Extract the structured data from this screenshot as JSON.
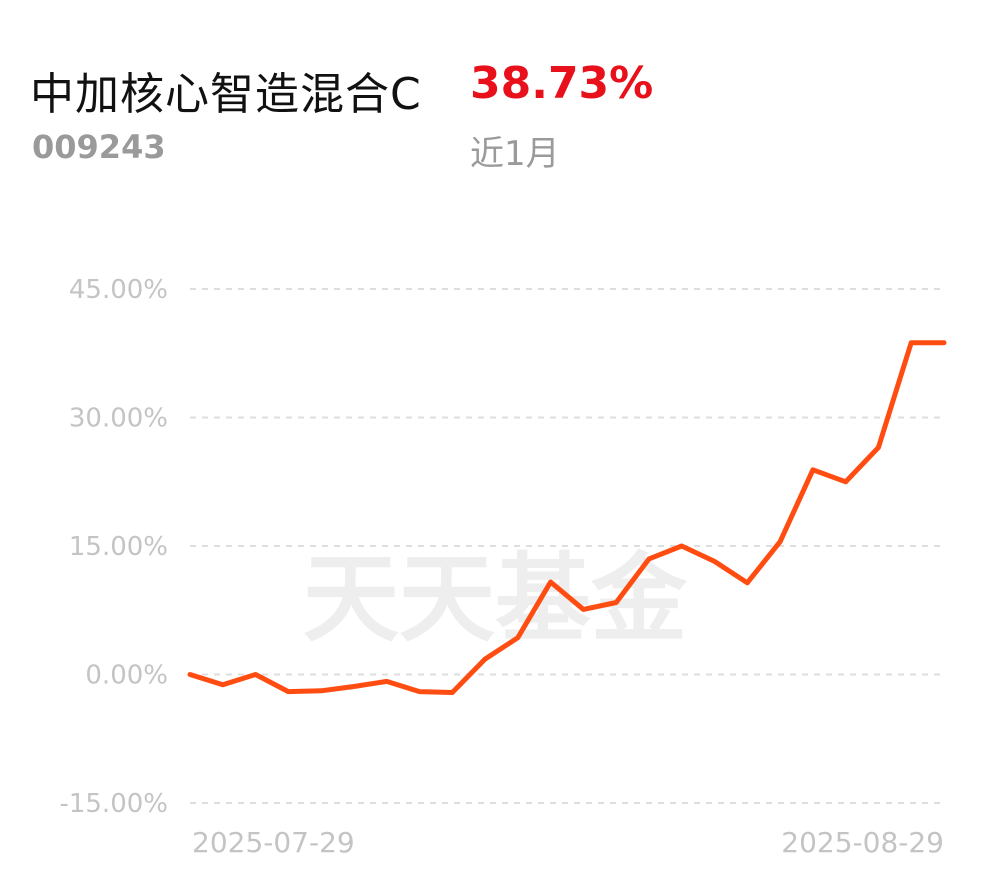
{
  "fund": {
    "name": "中加核心智造混合C",
    "code": "009243",
    "return_value": "38.73%",
    "period_label": "近1月"
  },
  "watermark": "天天基金",
  "colors": {
    "line": "#ff4d12",
    "return": "#e8101a",
    "grid": "#dedede",
    "axis_text": "#c4c4c4"
  },
  "chart_data": {
    "type": "line",
    "x_start_label": "2025-07-29",
    "x_end_label": "2025-08-29",
    "y_unit": "%",
    "ylim": [
      -15,
      45
    ],
    "y_ticks": [
      45,
      30,
      15,
      0,
      -15
    ],
    "y_tick_labels": [
      "45.00%",
      "30.00%",
      "15.00%",
      "0.00%",
      "-15.00%"
    ],
    "grid": true,
    "series": [
      {
        "values": [
          0.0,
          -1.2,
          0.0,
          -2.0,
          -1.9,
          -1.4,
          -0.8,
          -2.0,
          -2.1,
          1.8,
          4.3,
          10.8,
          7.6,
          8.4,
          13.5,
          15.0,
          13.2,
          10.7,
          15.5,
          23.9,
          22.5,
          26.5,
          38.73,
          38.73
        ]
      }
    ]
  }
}
